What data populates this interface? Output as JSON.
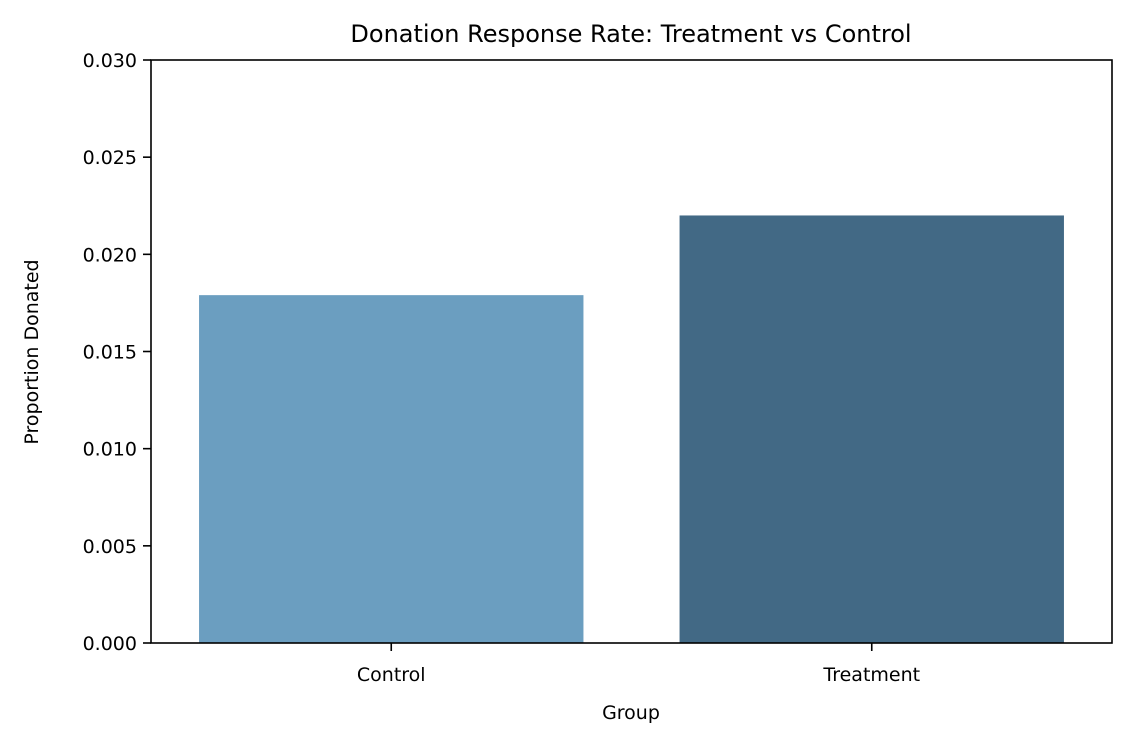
{
  "chart_data": {
    "type": "bar",
    "title": "Donation Response Rate: Treatment vs Control",
    "xlabel": "Group",
    "ylabel": "Proportion Donated",
    "categories": [
      "Control",
      "Treatment"
    ],
    "values": [
      0.0179,
      0.022
    ],
    "colors": [
      "#6b9ec0",
      "#426985"
    ],
    "ylim": [
      0,
      0.03
    ],
    "yticks": [
      0.0,
      0.005,
      0.01,
      0.015,
      0.02,
      0.025,
      0.03
    ],
    "ytick_labels": [
      "0.000",
      "0.005",
      "0.010",
      "0.015",
      "0.020",
      "0.025",
      "0.030"
    ],
    "grid": false,
    "legend": "none"
  }
}
